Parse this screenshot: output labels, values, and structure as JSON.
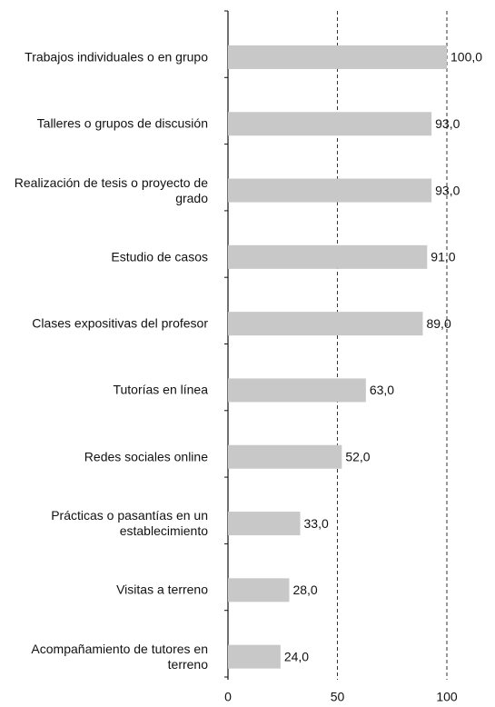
{
  "chart_data": {
    "type": "barh",
    "categories": [
      "Trabajos individuales o en grupo",
      "Talleres o grupos de discusión",
      "Realización de tesis o proyecto de grado",
      "Estudio de casos",
      "Clases expositivas del profesor",
      "Tutorías en línea",
      "Redes sociales online",
      "Prácticas o pasantías en un establecimiento",
      "Visitas a terreno",
      "Acompañamiento de tutores en terreno"
    ],
    "values": [
      100,
      93,
      93,
      91,
      89,
      63,
      52,
      33,
      28,
      24
    ],
    "value_labels": [
      "100,0",
      "93,0",
      "93,0",
      "91,0",
      "89,0",
      "63,0",
      "52,0",
      "33,0",
      "28,0",
      "24,0"
    ],
    "color": "#c8c8c8",
    "xlim": [
      0,
      100
    ],
    "xticks": [
      0,
      50,
      100
    ],
    "grid": true
  }
}
